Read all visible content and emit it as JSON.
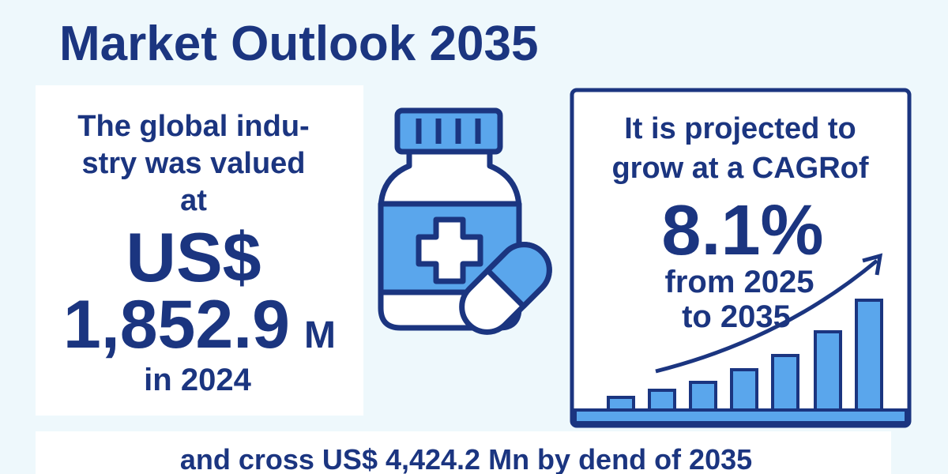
{
  "title": "Market Outlook 2035",
  "left_panel": {
    "intro_lines": [
      "The global indu-",
      "stry was valued",
      "at"
    ],
    "currency": "US$",
    "value": "1,852.9",
    "unit": "M",
    "year_line": "in 2024"
  },
  "right_panel": {
    "intro_lines": [
      "It is projected to",
      "grow at a CAGRof"
    ],
    "cagr": "8.1%",
    "period_lines": [
      "from 2025",
      "to 2035"
    ]
  },
  "footer": {
    "text": "and cross US$ 4,424.2 Mn by dend of 2035"
  }
}
